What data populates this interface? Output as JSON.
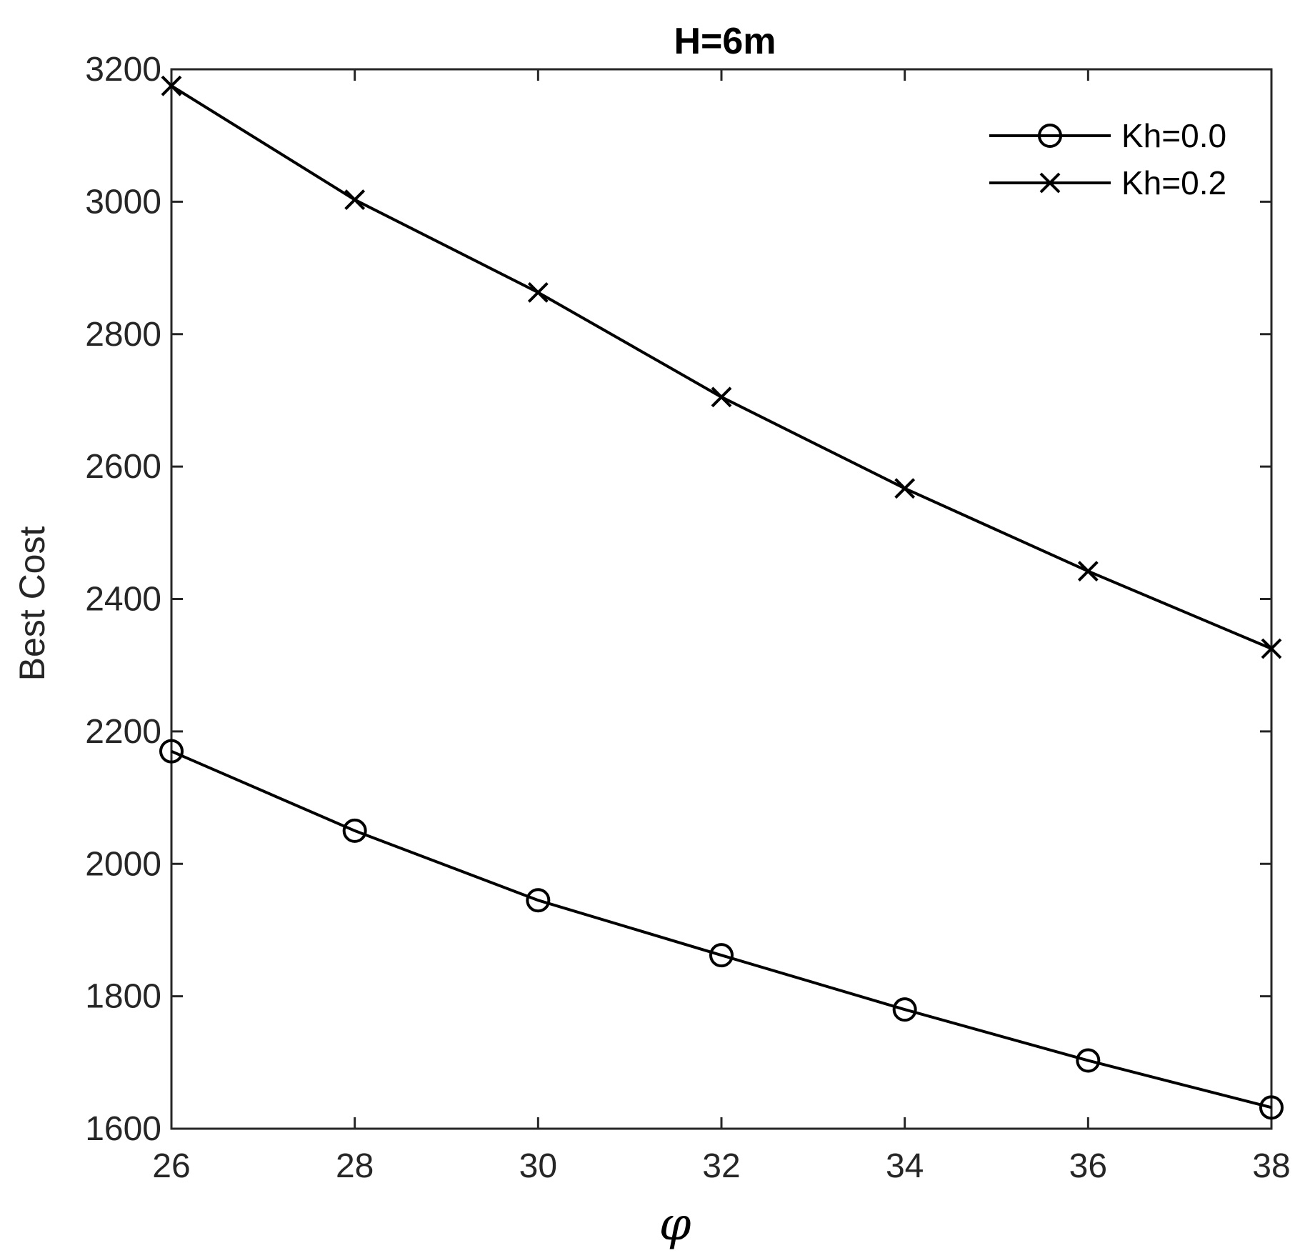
{
  "chart_data": {
    "type": "line",
    "title": "H=6m",
    "xlabel": "φ",
    "ylabel": "Best Cost",
    "x": [
      26,
      28,
      30,
      32,
      34,
      36,
      38
    ],
    "xlim": [
      26,
      38
    ],
    "ylim": [
      1600,
      3200
    ],
    "xticks": [
      26,
      28,
      30,
      32,
      34,
      36,
      38
    ],
    "yticks": [
      1600,
      1800,
      2000,
      2200,
      2400,
      2600,
      2800,
      3000,
      3200
    ],
    "grid": false,
    "legend_position": "top-right",
    "series": [
      {
        "name": "Kh=0.0",
        "marker": "circle",
        "color": "#000000",
        "values": [
          2170,
          2050,
          1945,
          1862,
          1780,
          1703,
          1632
        ]
      },
      {
        "name": "Kh=0.2",
        "marker": "x",
        "color": "#000000",
        "values": [
          3175,
          3003,
          2863,
          2705,
          2567,
          2442,
          2325
        ]
      }
    ]
  }
}
